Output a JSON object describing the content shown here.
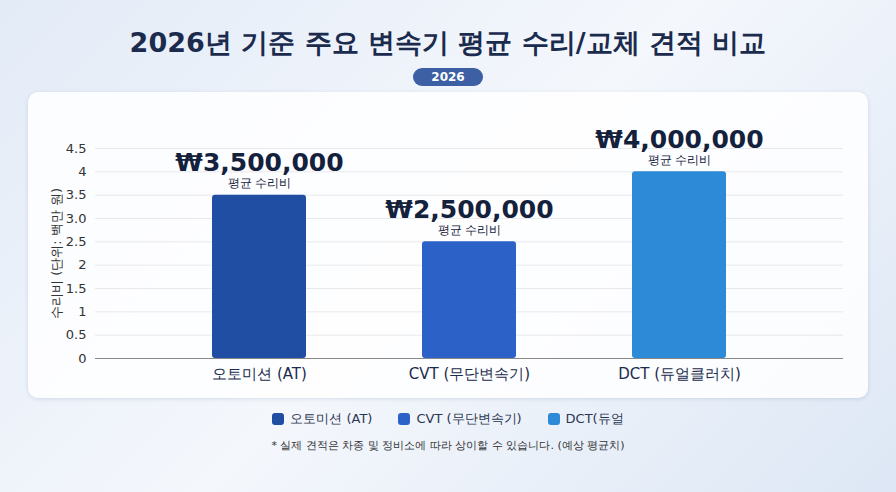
{
  "chart_data": {
    "type": "bar",
    "title": "2026년 기준 주요 변속기 평균 수리/교체 견적 비교",
    "subtitle": "2026",
    "y_label": "수리비 (단위: 백만 원)",
    "categories": [
      "오토미션 (AT)",
      "CVT (무단변속기)",
      "DCT (듀얼클러치)"
    ],
    "values": [
      3.5,
      2.5,
      4
    ],
    "value_labels": [
      "₩3,500,000",
      "₩2,500,000",
      "₩4,000,000"
    ],
    "data_label_caption": "평균 수리비",
    "colors": [
      "#1f4ea3",
      "#2c62c8",
      "#2d8ad6"
    ],
    "ylim": [
      0,
      4.5
    ],
    "yticks": [
      0,
      0.5,
      1,
      1.5,
      2,
      2.5,
      {
        "value": 3,
        "label": "3.0"
      },
      3.5,
      4,
      4.5
    ],
    "grid": true,
    "data_labels": true,
    "legend": "bottom",
    "legend_labels": [
      "오토미션 (AT)",
      "CVT (무단변속기)",
      "DCT(듀얼"
    ],
    "note": "* 실제 견적은 차종 및 정비소에 따라 상이할 수 있습니다. (예상 평균치)"
  }
}
